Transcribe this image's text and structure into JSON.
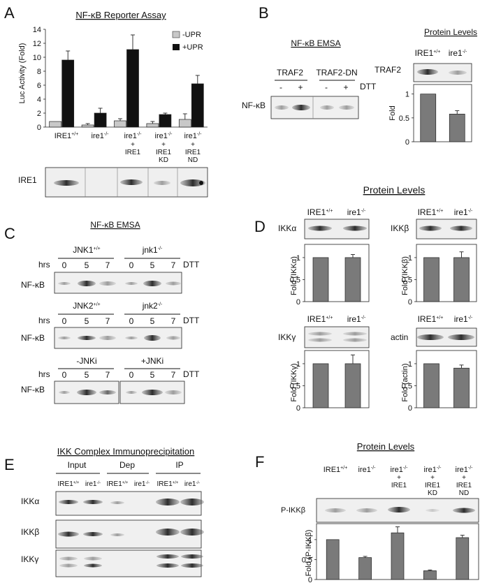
{
  "panelA": {
    "letter": "A",
    "title": "NF-κB Reporter Assay",
    "ylabel": "Luc Activity (Fold)",
    "legend": [
      "-UPR",
      "+UPR"
    ],
    "groups": [
      {
        "l1": "IRE1",
        "sup": "+/+",
        "l2": "",
        "l3": "",
        "l4": "",
        "l5": ""
      },
      {
        "l1": "ire1",
        "sup": "-/-",
        "l2": "",
        "l3": "",
        "l4": "",
        "l5": ""
      },
      {
        "l1": "ire1",
        "sup": "-/-",
        "l2": "+",
        "l3": "IRE1",
        "l4": "",
        "l5": ""
      },
      {
        "l1": "ire1",
        "sup": "-/-",
        "l2": "+",
        "l3": "IRE1",
        "l4": "KD",
        "l5": ""
      },
      {
        "l1": "ire1",
        "sup": "-/-",
        "l2": "+",
        "l3": "IRE1",
        "l4": "ND",
        "l5": ""
      }
    ],
    "blot_label": "IRE1"
  },
  "panelB": {
    "letter": "B",
    "emsa_title": "NF-κB EMSA",
    "col1": "TRAF2",
    "col2": "TRAF2-DN",
    "signs": [
      "-",
      "+",
      "-",
      "+"
    ],
    "dtt": "DTT",
    "row_label": "NF-κB",
    "protein_title": "Protein Levels",
    "g1": "IRE1",
    "g1sup": "+/+",
    "g2": "ire1",
    "g2sup": "-/-",
    "blot_label": "TRAF2",
    "ylabel": "Fold"
  },
  "panelC": {
    "letter": "C",
    "title": "NF-κB EMSA",
    "hrs": "hrs",
    "times": [
      "0",
      "5",
      "7",
      "0",
      "5",
      "7"
    ],
    "dtt": "DTT",
    "row_label": "NF-κB",
    "r1": {
      "a": "JNK1",
      "asup": "+/+",
      "b": "jnk1",
      "bsup": "-/-"
    },
    "r2": {
      "a": "JNK2",
      "asup": "+/+",
      "b": "jnk2",
      "bsup": "-/-"
    },
    "r3": {
      "a": "-JNKi",
      "b": "+JNKi"
    }
  },
  "panelD": {
    "letter": "D",
    "title": "Protein Levels",
    "g1": "IRE1",
    "g1sup": "+/+",
    "g2": "ire1",
    "g2sup": "-/-",
    "blots": [
      "IKKα",
      "IKKβ",
      "IKKγ",
      "actin"
    ],
    "ylabels": [
      "Fold (IKKα)",
      "Fold (IKKβ)",
      "Fold (IKKγ)",
      "Fold (actin)"
    ]
  },
  "panelE": {
    "letter": "E",
    "title": "IKK Complex Immunoprecipitation",
    "groups": [
      "Input",
      "Dep",
      "IP"
    ],
    "g1": "IRE1",
    "g1sup": "+/+",
    "g2": "ire1",
    "g2sup": "-/-",
    "rows": [
      "IKKα",
      "IKKβ",
      "IKKγ"
    ]
  },
  "panelF": {
    "letter": "F",
    "title": "Protein Levels",
    "blot_label": "P-IKKβ",
    "ylabel": "Fold (P-IKKβ)"
  },
  "chart_data": [
    {
      "type": "bar",
      "title": "NF-κB Reporter Assay",
      "ylabel": "Luc Activity (Fold)",
      "categories": [
        "IRE1+/+",
        "ire1-/-",
        "ire1-/- + IRE1",
        "ire1-/- + IRE1 KD",
        "ire1-/- + IRE1 ND"
      ],
      "series": [
        {
          "name": "-UPR",
          "values": [
            0.8,
            0.3,
            0.9,
            0.5,
            1.1
          ],
          "errors": [
            0,
            0.2,
            0.3,
            0.3,
            0.8
          ],
          "color": "#c8c8c8"
        },
        {
          "name": "+UPR",
          "values": [
            9.6,
            2.0,
            11.1,
            1.8,
            6.2
          ],
          "errors": [
            1.3,
            0.7,
            2.1,
            0.2,
            1.2
          ],
          "color": "#111111"
        }
      ],
      "ylim": [
        0,
        14
      ],
      "yticks": [
        "0",
        "2",
        "4",
        "6",
        "8",
        "10",
        "12",
        "14"
      ],
      "legend": "top-right"
    },
    {
      "type": "bar",
      "ylabel": "Fold",
      "categories": [
        "IRE1+/+",
        "ire1-/-"
      ],
      "values": [
        1.0,
        0.58
      ],
      "errors": [
        0,
        0.07
      ],
      "ylim": [
        0,
        1.2
      ],
      "yticks": [
        "0",
        "0.5",
        "1"
      ]
    },
    {
      "type": "bar",
      "ylabel": "Fold (IKKα)",
      "categories": [
        "IRE1+/+",
        "ire1-/-"
      ],
      "values": [
        1.0,
        1.0
      ],
      "errors": [
        0,
        0.07
      ],
      "ylim": [
        0,
        1.3
      ],
      "yticks": [
        "0",
        "0.5",
        "1"
      ]
    },
    {
      "type": "bar",
      "ylabel": "Fold (IKKβ)",
      "categories": [
        "IRE1+/+",
        "ire1-/-"
      ],
      "values": [
        1.0,
        1.0
      ],
      "errors": [
        0,
        0.13
      ],
      "ylim": [
        0,
        1.3
      ],
      "yticks": [
        "0",
        "0.5",
        "1"
      ]
    },
    {
      "type": "bar",
      "ylabel": "Fold (IKKγ)",
      "categories": [
        "IRE1+/+",
        "ire1-/-"
      ],
      "values": [
        1.0,
        1.0
      ],
      "errors": [
        0,
        0.2
      ],
      "ylim": [
        0,
        1.3
      ],
      "yticks": [
        "0",
        "0.5",
        "1"
      ]
    },
    {
      "type": "bar",
      "ylabel": "Fold (actin)",
      "categories": [
        "IRE1+/+",
        "ire1-/-"
      ],
      "values": [
        1.0,
        0.9
      ],
      "errors": [
        0,
        0.07
      ],
      "ylim": [
        0,
        1.3
      ],
      "yticks": [
        "0",
        "0.5",
        "1"
      ]
    },
    {
      "type": "bar",
      "ylabel": "Fold (P-IKKβ)",
      "categories": [
        "IRE1+/+",
        "ire1-/-",
        "ire1-/- + IRE1",
        "ire1-/- + IRE1 KD",
        "ire1-/- + IRE1 ND"
      ],
      "values": [
        1.0,
        0.55,
        1.17,
        0.22,
        1.05
      ],
      "errors": [
        0,
        0.03,
        0.15,
        0.02,
        0.06
      ],
      "ylim": [
        0,
        1.4
      ],
      "yticks": [
        "0",
        "0.5",
        "1"
      ]
    }
  ]
}
